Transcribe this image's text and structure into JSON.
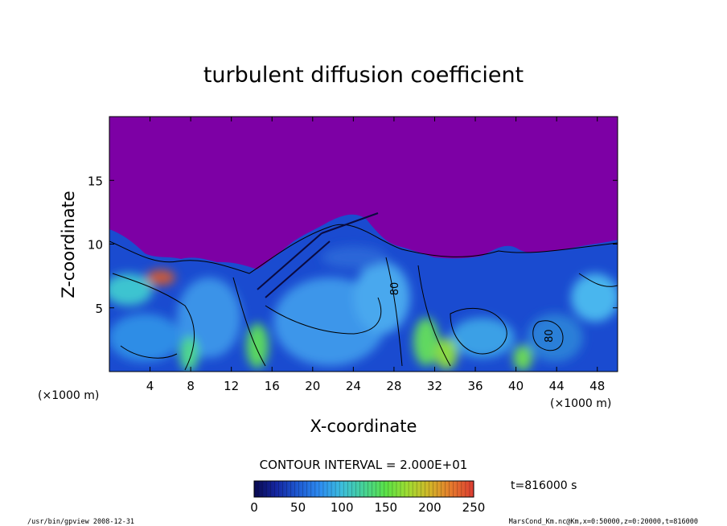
{
  "chart_data": {
    "type": "heatmap",
    "title": "turbulent diffusion coefficient",
    "xlabel": "X-coordinate",
    "ylabel": "Z-coordinate",
    "x_unit_label": "(×1000 m)",
    "x_unit_label_right": "(×1000 m)",
    "xlim": [
      0,
      50
    ],
    "ylim": [
      0,
      20
    ],
    "xticks": [
      "4",
      "8",
      "12",
      "16",
      "20",
      "24",
      "28",
      "32",
      "36",
      "40",
      "44",
      "48"
    ],
    "xtick_values": [
      4,
      8,
      12,
      16,
      20,
      24,
      28,
      32,
      36,
      40,
      44,
      48
    ],
    "yticks": [
      "5",
      "10",
      "15"
    ],
    "ytick_values": [
      5,
      10,
      15
    ],
    "contour_interval_text": "CONTOUR INTERVAL = 2.000E+01",
    "contour_labels": [
      {
        "text": "80",
        "x": 28.4,
        "z": 6.5
      },
      {
        "text": "80",
        "x": 43.6,
        "z": 2.8
      }
    ],
    "colorbar": {
      "min": 0,
      "max": 250,
      "ticks": [
        "0",
        "50",
        "100",
        "150",
        "200",
        "250"
      ],
      "tick_values": [
        0,
        50,
        100,
        150,
        200,
        250
      ],
      "colors": [
        "#0a0a50",
        "#1426a0",
        "#1e5ad2",
        "#2d8cf0",
        "#3cbedc",
        "#46d296",
        "#5ae146",
        "#a0dc32",
        "#d2b428",
        "#e6782d",
        "#dc3c32"
      ]
    },
    "background_color": "#7d00a5",
    "time_label": "t=816000 s",
    "field_description": "PBL turbulent diffusion coefficient, values ~0 (purple) above z≈10 km, 0-200 in the convective layer below"
  },
  "footer": {
    "left": "/usr/bin/gpview   2008-12-31",
    "right": "MarsCond_Km.nc@Km,x=0:50000,z=0:20000,t=816000"
  }
}
